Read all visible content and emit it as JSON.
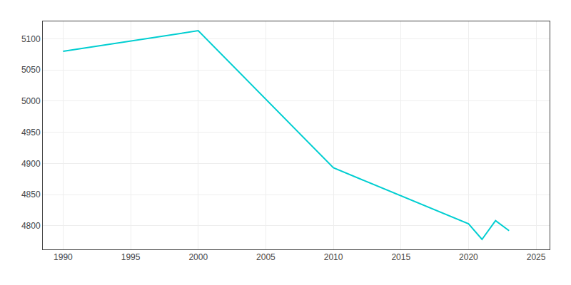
{
  "chart_data": {
    "type": "line",
    "x": [
      1990,
      2000,
      2010,
      2020,
      2021,
      2022,
      2023
    ],
    "values": [
      5080,
      5113,
      4893,
      4803,
      4778,
      4808,
      4792
    ],
    "color": "#00CED1",
    "xlim": [
      1988.5,
      2026
    ],
    "xticks": [
      1990,
      1995,
      2000,
      2005,
      2010,
      2015,
      2020,
      2025
    ],
    "ylim": [
      4762,
      5128
    ],
    "yticks": [
      4800,
      4850,
      4900,
      4950,
      5000,
      5050,
      5100
    ],
    "grid": true
  }
}
